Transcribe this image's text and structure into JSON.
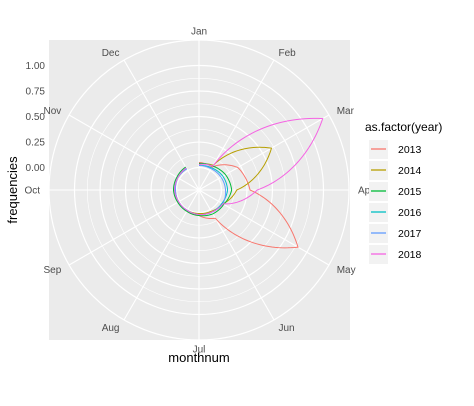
{
  "chart_data": {
    "type": "line",
    "coord": "polar",
    "xlabel": "monthnum",
    "ylabel": "frequencies",
    "month_labels": [
      "Jan",
      "Feb",
      "Mar",
      "Apr",
      "May",
      "Jun",
      "Jul",
      "Aug",
      "Sep",
      "Oct",
      "Nov",
      "Dec"
    ],
    "y_ticks": [
      "0.00",
      "0.25",
      "0.50",
      "0.75",
      "1.00"
    ],
    "ylim": [
      -0.22,
      1.25
    ],
    "grid": true,
    "legend": {
      "title": "as.factor(year)",
      "position": "right"
    },
    "series": [
      {
        "name": "2013",
        "color": "#F8766D",
        "values": [
          0.05,
          0.04,
          0.22,
          0.28,
          0.9,
          0.1,
          0.03,
          0.02,
          0.01,
          0.01,
          0.02,
          0.03
        ]
      },
      {
        "name": "2014",
        "color": "#B79F00",
        "values": [
          0.03,
          0.06,
          0.6,
          0.15,
          0.05,
          0.02,
          0.01,
          0.01,
          0.02,
          0.02,
          0.02,
          0.02
        ]
      },
      {
        "name": "2015",
        "color": "#00BA38",
        "values": [
          0.04,
          0.05,
          0.08,
          0.1,
          0.06,
          0.05,
          0.03,
          0.02,
          0.02,
          0.03,
          0.03,
          0.04
        ]
      },
      {
        "name": "2016",
        "color": "#00BFC4",
        "values": [
          0.02,
          0.03,
          0.05,
          0.06,
          0.04,
          0.03,
          0.02,
          0.01,
          0.01,
          0.02,
          0.02,
          0.02
        ]
      },
      {
        "name": "2017",
        "color": "#619CFF",
        "values": [
          0.02,
          0.02,
          0.03,
          0.04,
          0.05,
          0.03,
          0.02,
          0.01,
          0.01,
          0.01,
          0.02,
          0.02
        ]
      },
      {
        "name": "2018",
        "color": "#F564E3",
        "values": [
          0.03,
          0.05,
          1.18,
          0.35,
          0.05,
          0.03,
          0.02,
          0.01,
          0.01,
          0.02,
          0.02,
          0.03
        ]
      }
    ]
  }
}
